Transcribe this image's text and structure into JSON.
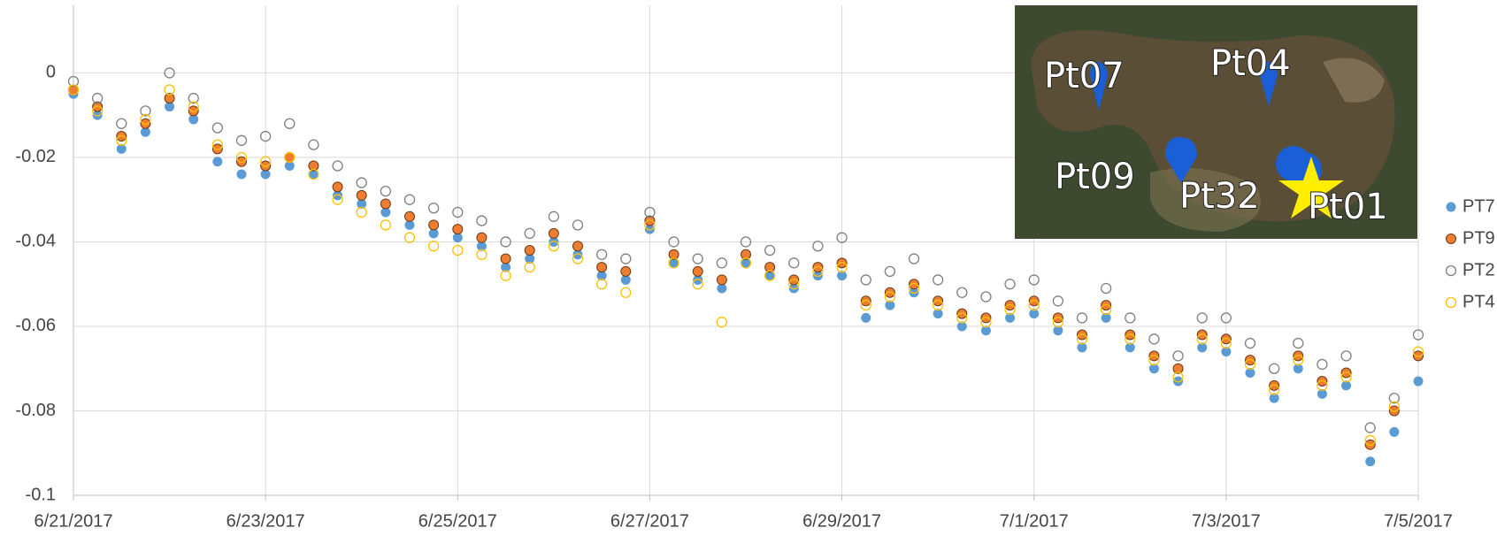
{
  "chart_data": {
    "type": "scatter",
    "x": [
      0,
      0.25,
      0.5,
      0.75,
      1,
      1.25,
      1.5,
      1.75,
      2,
      2.25,
      2.5,
      2.75,
      3,
      3.25,
      3.5,
      3.75,
      4,
      4.25,
      4.5,
      4.75,
      5,
      5.25,
      5.5,
      5.75,
      6,
      6.25,
      6.5,
      6.75,
      7,
      7.25,
      7.5,
      7.75,
      8,
      8.25,
      8.5,
      8.75,
      9,
      9.25,
      9.5,
      9.75,
      10,
      10.25,
      10.5,
      10.75,
      11,
      11.25,
      11.5,
      11.75,
      12,
      12.25,
      12.5,
      12.75,
      13,
      13.25,
      13.5,
      13.75,
      14
    ],
    "series": [
      {
        "name": "PT7",
        "color": "#5b9bd5",
        "marker": "filled",
        "values": [
          -0.005,
          -0.01,
          -0.018,
          -0.014,
          -0.008,
          -0.011,
          -0.021,
          -0.024,
          -0.024,
          -0.022,
          -0.024,
          -0.029,
          -0.031,
          -0.033,
          -0.036,
          -0.038,
          -0.039,
          -0.041,
          -0.046,
          -0.044,
          -0.04,
          -0.043,
          -0.048,
          -0.049,
          -0.037,
          -0.045,
          -0.049,
          -0.051,
          -0.045,
          -0.048,
          -0.051,
          -0.048,
          -0.048,
          -0.058,
          -0.055,
          -0.052,
          -0.057,
          -0.06,
          -0.061,
          -0.058,
          -0.057,
          -0.061,
          -0.065,
          -0.058,
          -0.065,
          -0.07,
          -0.073,
          -0.065,
          -0.066,
          -0.071,
          -0.077,
          -0.07,
          -0.076,
          -0.074,
          -0.092,
          -0.085,
          -0.073
        ]
      },
      {
        "name": "PT9",
        "color": "#ed7d31",
        "marker": "filled",
        "edgecolor": "#6b3a14",
        "values": [
          -0.004,
          -0.008,
          -0.015,
          -0.012,
          -0.006,
          -0.009,
          -0.018,
          -0.021,
          -0.022,
          -0.02,
          -0.022,
          -0.027,
          -0.029,
          -0.031,
          -0.034,
          -0.036,
          -0.037,
          -0.039,
          -0.044,
          -0.042,
          -0.038,
          -0.041,
          -0.046,
          -0.047,
          -0.035,
          -0.043,
          -0.047,
          -0.049,
          -0.043,
          -0.046,
          -0.049,
          -0.046,
          -0.045,
          -0.054,
          -0.052,
          -0.05,
          -0.054,
          -0.057,
          -0.058,
          -0.055,
          -0.054,
          -0.058,
          -0.062,
          -0.055,
          -0.062,
          -0.067,
          -0.07,
          -0.062,
          -0.063,
          -0.068,
          -0.074,
          -0.067,
          -0.073,
          -0.071,
          -0.088,
          -0.08,
          -0.067
        ]
      },
      {
        "name": "PT2",
        "color": "#7f7f7f",
        "marker": "hollow",
        "values": [
          -0.002,
          -0.006,
          -0.012,
          -0.009,
          0,
          -0.006,
          -0.013,
          -0.016,
          -0.015,
          -0.012,
          -0.017,
          -0.022,
          -0.026,
          -0.028,
          -0.03,
          -0.032,
          -0.033,
          -0.035,
          -0.04,
          -0.038,
          -0.034,
          -0.036,
          -0.043,
          -0.044,
          -0.033,
          -0.04,
          -0.044,
          -0.045,
          -0.04,
          -0.042,
          -0.045,
          -0.041,
          -0.039,
          -0.049,
          -0.047,
          -0.044,
          -0.049,
          -0.052,
          -0.053,
          -0.05,
          -0.049,
          -0.054,
          -0.058,
          -0.051,
          -0.058,
          -0.063,
          -0.067,
          -0.058,
          -0.058,
          -0.064,
          -0.07,
          -0.064,
          -0.069,
          -0.067,
          -0.084,
          -0.077,
          -0.062
        ]
      },
      {
        "name": "PT4",
        "color": "#ffc000",
        "marker": "hollow",
        "values": [
          -0.004,
          -0.009,
          -0.016,
          -0.011,
          -0.004,
          -0.008,
          -0.017,
          -0.02,
          -0.021,
          -0.02,
          -0.024,
          -0.03,
          -0.033,
          -0.036,
          -0.039,
          -0.041,
          -0.042,
          -0.043,
          -0.048,
          -0.046,
          -0.041,
          -0.044,
          -0.05,
          -0.052,
          -0.036,
          -0.045,
          -0.05,
          -0.059,
          -0.045,
          -0.048,
          -0.05,
          -0.047,
          -0.046,
          -0.055,
          -0.053,
          -0.051,
          -0.055,
          -0.058,
          -0.059,
          -0.056,
          -0.055,
          -0.059,
          -0.063,
          -0.056,
          -0.063,
          -0.068,
          -0.072,
          -0.063,
          -0.064,
          -0.069,
          -0.075,
          -0.068,
          -0.074,
          -0.072,
          -0.087,
          -0.079,
          -0.066
        ]
      }
    ],
    "xlim": [
      0,
      14
    ],
    "xticks": [
      {
        "value": 0,
        "label": "6/21/2017"
      },
      {
        "value": 2,
        "label": "6/23/2017"
      },
      {
        "value": 4,
        "label": "6/25/2017"
      },
      {
        "value": 6,
        "label": "6/27/2017"
      },
      {
        "value": 8,
        "label": "6/29/2017"
      },
      {
        "value": 10,
        "label": "7/1/2017"
      },
      {
        "value": 12,
        "label": "7/3/2017"
      },
      {
        "value": 14,
        "label": "7/5/2017"
      }
    ],
    "ylim": [
      -0.1,
      0.016
    ],
    "yticks": [
      -0.1,
      -0.08,
      -0.06,
      -0.04,
      -0.02,
      0
    ],
    "grid": true,
    "legend": "right"
  },
  "inset": {
    "labels": [
      "Pt07",
      "Pt04",
      "Pt09",
      "Pt32",
      "Pt01"
    ]
  }
}
